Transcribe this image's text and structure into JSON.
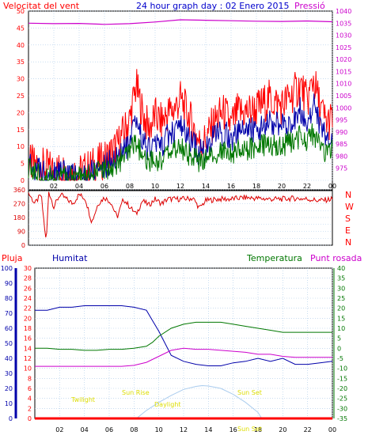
{
  "title": "24 hour graph day : 02 Enero 2015",
  "colors": {
    "wind": "#ff0000",
    "direction": "#dd0000",
    "pressure": "#cc00cc",
    "rain": "#ff0000",
    "humidity": "#0000aa",
    "temperature": "#007700",
    "dewpoint": "#cc00cc",
    "sun": "#aaccee",
    "annot": "#dddd00",
    "grid": "#a8c8e8",
    "axis": "#000000"
  },
  "panel1": {
    "left_label": "Velocitat del vent",
    "right_label": "Pressió"
  },
  "panel2": {
    "compass": [
      "N",
      "W",
      "S",
      "E",
      "N"
    ]
  },
  "panel3": {
    "rain_label": "Pluja",
    "humidity_label": "Humitat",
    "temp_label": "Temperatura",
    "dew_label": "Punt rosada",
    "annotations": {
      "twilight": "Twilight",
      "sunrise": "Sun Rise",
      "daylight": "Daylight",
      "sunset": "Sun Set",
      "sunset2": "Sun Set"
    }
  },
  "chart_data": [
    {
      "type": "line",
      "name": "wind-pressure",
      "x_ticks": [
        "02",
        "04",
        "06",
        "08",
        "10",
        "12",
        "14",
        "16",
        "18",
        "20",
        "22",
        "00"
      ],
      "ylim_left": [
        0,
        50
      ],
      "yticks_left": [
        0,
        5,
        10,
        15,
        20,
        25,
        30,
        35,
        40,
        45,
        50
      ],
      "ylim_right": [
        970,
        1040
      ],
      "yticks_right": [
        975,
        980,
        985,
        990,
        995,
        1000,
        1005,
        1010,
        1015,
        1020,
        1025,
        1030,
        1035,
        1040
      ],
      "grid": true,
      "series": [
        {
          "color": "#ff0000",
          "axis": "left",
          "x": [
            0,
            1,
            2,
            3,
            4,
            5,
            6,
            7,
            8,
            8.5,
            9,
            9.5,
            10,
            10.5,
            11,
            11.5,
            12,
            12.5,
            13,
            13.5,
            14,
            14.5,
            15,
            15.5,
            16,
            16.5,
            17,
            18,
            19,
            20,
            21,
            21.5,
            22,
            22.5,
            23,
            23.5,
            24
          ],
          "y": [
            5,
            4,
            3,
            3,
            2,
            4,
            6,
            10,
            18,
            28,
            20,
            15,
            19,
            17,
            20,
            21,
            24,
            20,
            16,
            11,
            12,
            16,
            19,
            20,
            16,
            20,
            20,
            21,
            24,
            22,
            26,
            28,
            23,
            30,
            22,
            17,
            18
          ]
        },
        {
          "color": "#0000aa",
          "axis": "left",
          "x": [
            0,
            1,
            2,
            3,
            4,
            5,
            6,
            7,
            8,
            8.5,
            9,
            9.5,
            10,
            10.5,
            11,
            11.5,
            12,
            12.5,
            13,
            13.5,
            14,
            14.5,
            15,
            15.5,
            16,
            16.5,
            17,
            18,
            19,
            20,
            21,
            21.5,
            22,
            22.5,
            23,
            23.5,
            24
          ],
          "y": [
            4,
            3,
            2,
            2,
            1,
            3,
            4,
            7,
            10,
            18,
            12,
            9,
            11,
            10,
            13,
            14,
            16,
            13,
            11,
            8,
            9,
            12,
            14,
            14,
            12,
            14,
            15,
            15,
            17,
            16,
            18,
            21,
            17,
            23,
            16,
            12,
            13
          ]
        },
        {
          "color": "#007700",
          "axis": "left",
          "x": [
            0,
            1,
            2,
            3,
            4,
            5,
            6,
            7,
            8,
            8.5,
            9,
            9.5,
            10,
            10.5,
            11,
            11.5,
            12,
            12.5,
            13,
            13.5,
            14,
            14.5,
            15,
            15.5,
            16,
            16.5,
            17,
            18,
            19,
            20,
            21,
            21.5,
            22,
            22.5,
            23,
            23.5,
            24
          ],
          "y": [
            3,
            2,
            1,
            1,
            1,
            2,
            3,
            5,
            8,
            11,
            7,
            5,
            6,
            6,
            8,
            9,
            10,
            8,
            7,
            5,
            6,
            7,
            8,
            9,
            8,
            9,
            9,
            10,
            11,
            10,
            12,
            13,
            11,
            14,
            10,
            8,
            9
          ]
        },
        {
          "color": "#cc00cc",
          "axis": "right",
          "x": [
            0,
            2,
            4,
            6,
            8,
            10,
            12,
            14,
            16,
            18,
            20,
            22,
            24
          ],
          "y": [
            1035,
            1034.8,
            1034.9,
            1034.5,
            1034.8,
            1035.5,
            1036.4,
            1036.2,
            1036.0,
            1035.8,
            1035.7,
            1035.9,
            1035.6
          ]
        }
      ]
    },
    {
      "type": "line",
      "name": "wind-direction",
      "x_ticks": [
        "02",
        "04",
        "06",
        "08",
        "10",
        "12",
        "14",
        "16",
        "18",
        "20",
        "22",
        "00"
      ],
      "ylim": [
        0,
        360
      ],
      "yticks": [
        0,
        45,
        90,
        135,
        180,
        225,
        270,
        315,
        360
      ],
      "grid": true,
      "series": [
        {
          "color": "#dd0000",
          "x": [
            0,
            0.5,
            1,
            1.4,
            1.6,
            2,
            2.5,
            3,
            3.5,
            4,
            4.5,
            5,
            5.5,
            6,
            6.5,
            7,
            7.5,
            8,
            8.5,
            9,
            9.5,
            10,
            10.5,
            11,
            12,
            13,
            13.5,
            14,
            15,
            16,
            17,
            18,
            19,
            20,
            21,
            22,
            23,
            24
          ],
          "y": [
            340,
            270,
            330,
            10,
            350,
            250,
            330,
            300,
            270,
            330,
            300,
            150,
            270,
            310,
            280,
            180,
            300,
            250,
            200,
            290,
            260,
            300,
            270,
            300,
            300,
            305,
            240,
            290,
            300,
            300,
            310,
            305,
            300,
            300,
            305,
            300,
            290,
            300
          ]
        }
      ]
    },
    {
      "type": "line",
      "name": "rain-humidity-temperature",
      "x_ticks": [
        "02",
        "04",
        "06",
        "08",
        "10",
        "12",
        "14",
        "16",
        "18",
        "20",
        "22",
        "00"
      ],
      "ylim_rain": [
        0,
        30
      ],
      "yticks_rain": [
        0,
        2,
        4,
        6,
        8,
        10,
        12,
        14,
        16,
        18,
        20,
        22,
        24,
        26,
        28,
        30
      ],
      "ylim_humidity": [
        0,
        100
      ],
      "yticks_humidity": [
        0,
        10,
        20,
        30,
        40,
        50,
        60,
        70,
        80,
        90,
        100
      ],
      "ylim_temp": [
        -35,
        40
      ],
      "yticks_temp": [
        40,
        35,
        30,
        25,
        20,
        15,
        10,
        5,
        0,
        -5,
        -10,
        -15,
        -20,
        -25,
        -30,
        -35
      ],
      "grid": true,
      "series": [
        {
          "color": "#0000aa",
          "axis": "humidity",
          "x": [
            0,
            1,
            2,
            3,
            4,
            5,
            6,
            7,
            8,
            9,
            9.5,
            10,
            10.5,
            11,
            12,
            13,
            14,
            15,
            16,
            17,
            18,
            19,
            20,
            21,
            22,
            23,
            24
          ],
          "y": [
            72,
            72,
            74,
            74,
            75,
            75,
            75,
            75,
            74,
            72,
            65,
            58,
            50,
            42,
            38,
            36,
            35,
            35,
            37,
            38,
            40,
            38,
            40,
            36,
            36,
            37,
            38
          ]
        },
        {
          "color": "#007700",
          "axis": "temp",
          "x": [
            0,
            1,
            2,
            3,
            4,
            5,
            6,
            7,
            8,
            9,
            9.5,
            10,
            11,
            12,
            13,
            14,
            15,
            16,
            17,
            18,
            19,
            20,
            21,
            22,
            23,
            24
          ],
          "y": [
            0,
            0,
            -0.5,
            -0.5,
            -1,
            -1,
            -0.5,
            -0.5,
            0,
            1,
            3,
            6,
            10,
            12,
            13,
            13,
            13,
            12,
            11,
            10,
            9,
            8,
            8,
            8,
            8,
            8
          ]
        },
        {
          "color": "#cc00cc",
          "axis": "temp",
          "x": [
            0,
            1,
            2,
            3,
            4,
            5,
            6,
            7,
            8,
            9,
            10,
            11,
            12,
            13,
            14,
            15,
            16,
            17,
            18,
            19,
            20,
            21,
            22,
            23,
            24
          ],
          "y": [
            -9,
            -9,
            -9,
            -9,
            -9,
            -9,
            -9,
            -9,
            -8.5,
            -7,
            -4,
            -1,
            0,
            -0.5,
            -0.5,
            -1,
            -1.5,
            -2,
            -3,
            -3,
            -4,
            -4.5,
            -4.5,
            -4.5,
            -4.5
          ]
        },
        {
          "color": "#aaccee",
          "axis": "temp",
          "x": [
            8.2,
            9,
            10,
            11,
            12,
            13,
            13.5,
            14,
            15,
            16,
            17,
            18,
            18.3
          ],
          "y": [
            -35,
            -31,
            -27,
            -23.5,
            -20.5,
            -19,
            -18.6,
            -18.8,
            -20,
            -23,
            -27,
            -32,
            -35
          ]
        },
        {
          "color": "#ff0000",
          "axis": "rain",
          "x": [
            0,
            24
          ],
          "y": [
            0,
            0
          ]
        }
      ]
    }
  ]
}
